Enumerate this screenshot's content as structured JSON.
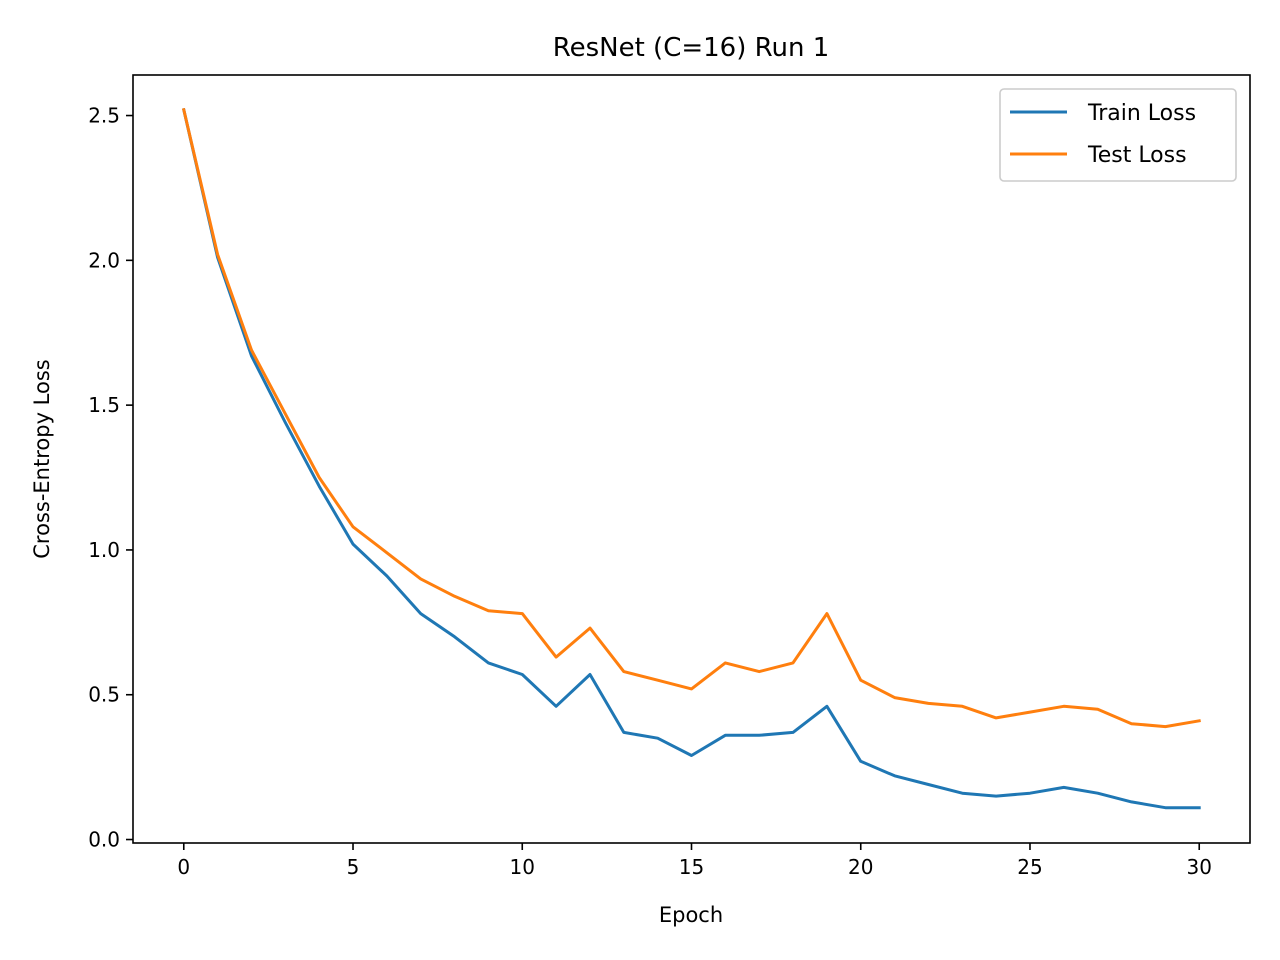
{
  "chart_data": {
    "type": "line",
    "title": "ResNet (C=16) Run 1",
    "xlabel": "Epoch",
    "ylabel": "Cross-Entropy Loss",
    "xlim": [
      -1.5,
      31.5
    ],
    "ylim": [
      -0.012,
      2.64
    ],
    "xticks": [
      0,
      5,
      10,
      15,
      20,
      25,
      30
    ],
    "xtick_labels": [
      "0",
      "5",
      "10",
      "15",
      "20",
      "25",
      "30"
    ],
    "yticks": [
      0.0,
      0.5,
      1.0,
      1.5,
      2.0,
      2.5
    ],
    "ytick_labels": [
      "0.0",
      "0.5",
      "1.0",
      "1.5",
      "2.0",
      "2.5"
    ],
    "grid": false,
    "legend_position": "upper right",
    "x": [
      0,
      1,
      2,
      3,
      4,
      5,
      6,
      7,
      8,
      9,
      10,
      11,
      12,
      13,
      14,
      15,
      16,
      17,
      18,
      19,
      20,
      21,
      22,
      23,
      24,
      25,
      26,
      27,
      28,
      29,
      30
    ],
    "series": [
      {
        "name": "Train Loss",
        "color": "#1f77b4",
        "values": [
          2.52,
          2.01,
          1.67,
          1.44,
          1.22,
          1.02,
          0.91,
          0.78,
          0.7,
          0.61,
          0.57,
          0.46,
          0.57,
          0.37,
          0.35,
          0.29,
          0.36,
          0.36,
          0.37,
          0.46,
          0.27,
          0.22,
          0.19,
          0.16,
          0.15,
          0.16,
          0.18,
          0.16,
          0.13,
          0.11,
          0.11
        ]
      },
      {
        "name": "Test Loss",
        "color": "#ff7f0e",
        "values": [
          2.52,
          2.02,
          1.69,
          1.47,
          1.25,
          1.08,
          0.99,
          0.9,
          0.84,
          0.79,
          0.78,
          0.63,
          0.73,
          0.58,
          0.55,
          0.52,
          0.61,
          0.58,
          0.61,
          0.78,
          0.55,
          0.49,
          0.47,
          0.46,
          0.42,
          0.44,
          0.46,
          0.45,
          0.4,
          0.39,
          0.41
        ]
      }
    ]
  }
}
